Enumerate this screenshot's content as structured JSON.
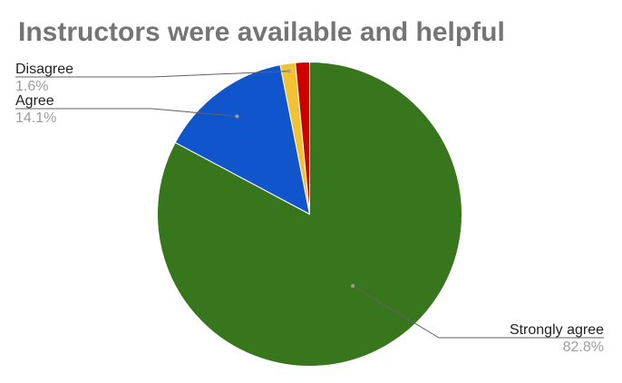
{
  "chart_data": {
    "type": "pie",
    "title": "Instructors were available and helpful",
    "slices": [
      {
        "label": "Strongly agree",
        "value": 82.8,
        "display": "82.8%",
        "color": "#38761d"
      },
      {
        "label": "Agree",
        "value": 14.1,
        "display": "14.1%",
        "color": "#1155cc"
      },
      {
        "label": "Disagree",
        "value": 1.6,
        "display": "1.6%",
        "color": "#f1c232"
      },
      {
        "label": "",
        "value": 1.5,
        "display": "",
        "color": "#cc0000"
      }
    ],
    "legend": "none",
    "labels": "outside with leader lines"
  }
}
